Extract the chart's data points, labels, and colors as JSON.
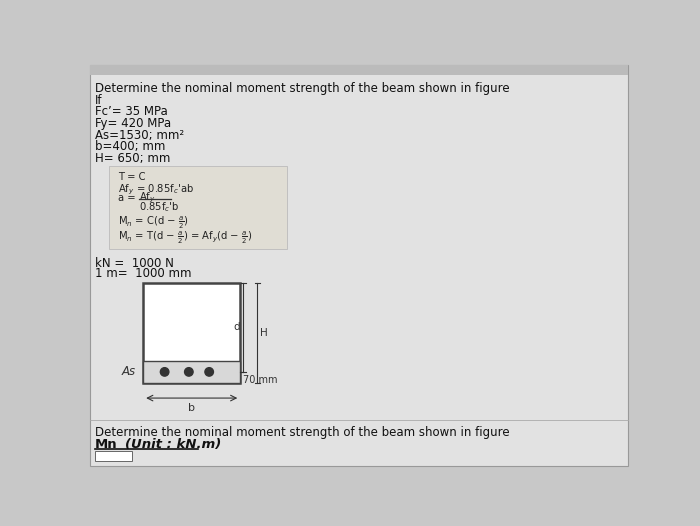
{
  "bg_color": "#c8c8c8",
  "panel_bg": "#e2e2e2",
  "formula_box_bg": "#e0ddd4",
  "title_text": "Determine the nominal moment strength of the beam shown in figure",
  "if_text": "If",
  "fc_text": "Fc’= 35 MPa",
  "fy_text": "Fy= 420 MPa",
  "as_text": "As=1530; mm²",
  "b_text": "b=400; mm",
  "H_text": "H= 650; mm",
  "kN_text": "kN =  1000 N",
  "m_text": "1 m=  1000 mm",
  "As_label": "As",
  "d_label": "d",
  "H_label": "H",
  "b_label": "b",
  "mm70_label": "70 mm",
  "bottom_title": "Determine the nominal moment strength of the beam shown in figure",
  "Mn_label": "Mn",
  "unit_label": "(Unit : kN.m)"
}
